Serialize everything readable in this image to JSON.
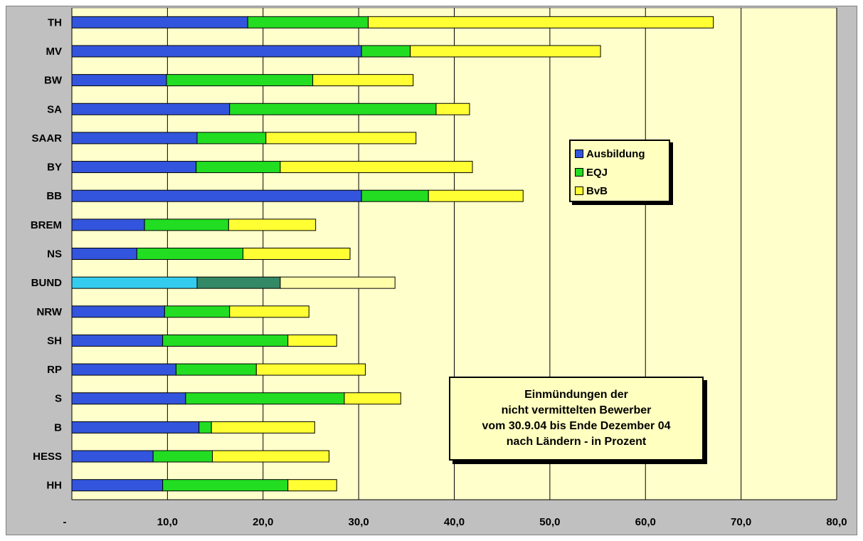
{
  "chart_data": {
    "type": "bar",
    "orientation": "horizontal",
    "stacked": true,
    "categories": [
      "TH",
      "MV",
      "BW",
      "SA",
      "SAAR",
      "BY",
      "BB",
      "BREM",
      "NS",
      "BUND",
      "NRW",
      "SH",
      "RP",
      "S",
      "B",
      "HESS",
      "HH"
    ],
    "series": [
      {
        "name": "Ausbildung",
        "color": "#3355dd",
        "values": [
          18.4,
          30.3,
          9.9,
          16.5,
          13.1,
          13.0,
          30.3,
          7.6,
          6.8,
          13.1,
          9.7,
          9.5,
          10.9,
          11.9,
          13.3,
          8.5,
          9.5
        ]
      },
      {
        "name": "EQJ",
        "color": "#22dd22",
        "values": [
          12.6,
          5.1,
          15.3,
          21.6,
          7.2,
          8.8,
          7.0,
          8.8,
          11.1,
          8.7,
          6.8,
          13.1,
          8.4,
          16.6,
          1.3,
          6.2,
          13.1
        ]
      },
      {
        "name": "BvB",
        "color": "#ffff33",
        "values": [
          36.1,
          19.9,
          10.5,
          3.5,
          15.7,
          20.1,
          9.9,
          9.1,
          11.2,
          12.0,
          8.3,
          5.1,
          11.4,
          5.9,
          10.8,
          12.2,
          5.1
        ]
      }
    ],
    "highlight": {
      "category": "BUND",
      "colors": [
        "#33ccee",
        "#338866",
        "#ffffaa"
      ]
    },
    "xlim": [
      0,
      80
    ],
    "xticks": [
      "-",
      "10,0",
      "20,0",
      "30,0",
      "40,0",
      "50,0",
      "60,0",
      "70,0",
      "80,0"
    ],
    "grid": true,
    "legend_position": "top-right",
    "plot_background": "#ffffcc",
    "frame_background": "#c0c0c0"
  },
  "note": {
    "lines": [
      "Einmündungen der",
      "nicht vermittelten Bewerber",
      "vom 30.9.04 bis Ende Dezember 04",
      "nach Ländern - in Prozent"
    ]
  }
}
